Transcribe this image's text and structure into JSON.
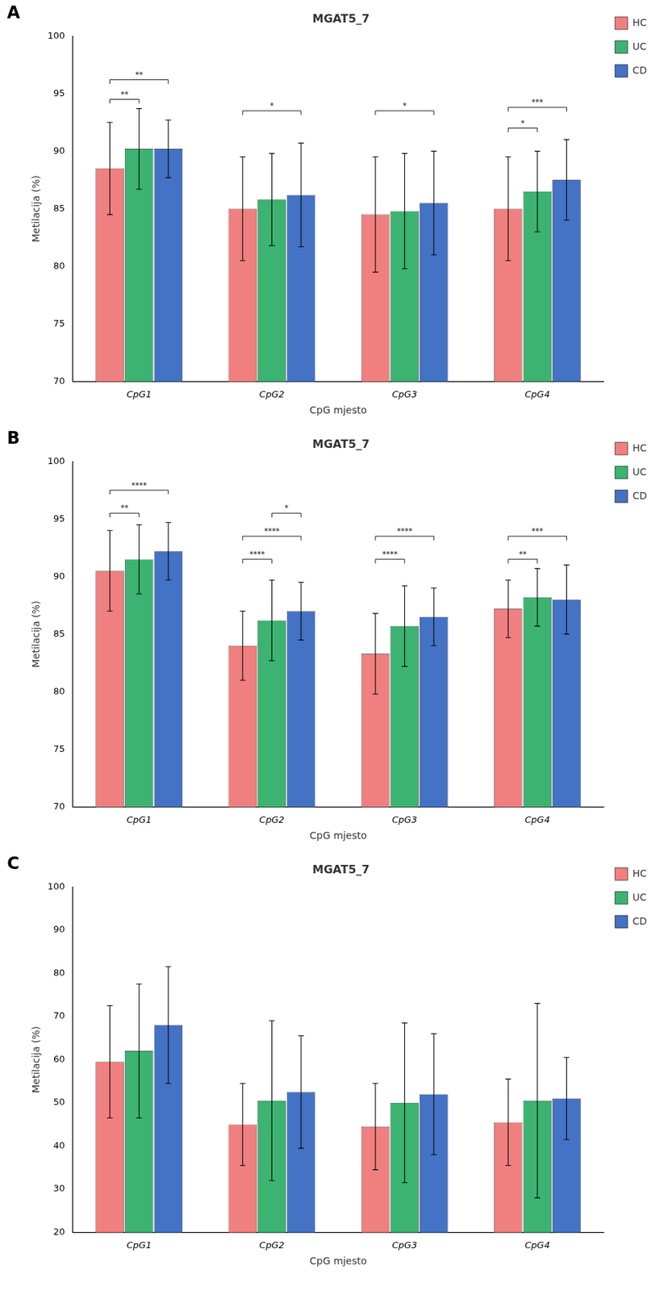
{
  "chart_data": [
    {
      "type": "bar",
      "panel_label": "A",
      "title": "MGAT5_7",
      "xlabel": "CpG mjesto",
      "ylabel": "Metilacija (%)",
      "categories": [
        "CpG1",
        "CpG2",
        "CpG3",
        "CpG4"
      ],
      "series": [
        {
          "name": "HC",
          "color": "#F08080",
          "values": [
            88.5,
            85.0,
            84.5,
            85.0
          ],
          "errors": [
            4.0,
            4.5,
            5.0,
            4.5
          ]
        },
        {
          "name": "UC",
          "color": "#3CB371",
          "values": [
            90.2,
            85.8,
            84.8,
            86.5
          ],
          "errors": [
            3.5,
            4.0,
            5.0,
            3.5
          ]
        },
        {
          "name": "CD",
          "color": "#4472C4",
          "values": [
            90.2,
            86.2,
            85.5,
            87.5
          ],
          "errors": [
            2.5,
            4.5,
            4.5,
            3.5
          ]
        }
      ],
      "ylim": [
        70,
        100
      ],
      "yticks": [
        70,
        75,
        80,
        85,
        90,
        95,
        100
      ],
      "grid": false,
      "legend": "right",
      "annotations": [
        {
          "category": "CpG1",
          "from": "HC",
          "to": "UC",
          "label": "**",
          "y": 94.5
        },
        {
          "category": "CpG1",
          "from": "HC",
          "to": "CD",
          "label": "**",
          "y": 96.2
        },
        {
          "category": "CpG2",
          "from": "HC",
          "to": "CD",
          "label": "*",
          "y": 93.5
        },
        {
          "category": "CpG3",
          "from": "HC",
          "to": "CD",
          "label": "*",
          "y": 93.5
        },
        {
          "category": "CpG4",
          "from": "HC",
          "to": "UC",
          "label": "*",
          "y": 92.0
        },
        {
          "category": "CpG4",
          "from": "HC",
          "to": "CD",
          "label": "***",
          "y": 93.8
        }
      ]
    },
    {
      "type": "bar",
      "panel_label": "B",
      "title": "MGAT5_7",
      "xlabel": "CpG mjesto",
      "ylabel": "Metilacija (%)",
      "categories": [
        "CpG1",
        "CpG2",
        "CpG3",
        "CpG4"
      ],
      "series": [
        {
          "name": "HC",
          "color": "#F08080",
          "values": [
            90.5,
            84.0,
            83.3,
            87.2
          ],
          "errors": [
            3.5,
            3.0,
            3.5,
            2.5
          ]
        },
        {
          "name": "UC",
          "color": "#3CB371",
          "values": [
            91.5,
            86.2,
            85.7,
            88.2
          ],
          "errors": [
            3.0,
            3.5,
            3.5,
            2.5
          ]
        },
        {
          "name": "CD",
          "color": "#4472C4",
          "values": [
            92.2,
            87.0,
            86.5,
            88.0
          ],
          "errors": [
            2.5,
            2.5,
            2.5,
            3.0
          ]
        }
      ],
      "ylim": [
        70,
        100
      ],
      "yticks": [
        70,
        75,
        80,
        85,
        90,
        95,
        100
      ],
      "grid": false,
      "legend": "right",
      "annotations": [
        {
          "category": "CpG1",
          "from": "HC",
          "to": "UC",
          "label": "**",
          "y": 95.5
        },
        {
          "category": "CpG1",
          "from": "HC",
          "to": "CD",
          "label": "****",
          "y": 97.5
        },
        {
          "category": "CpG2",
          "from": "HC",
          "to": "UC",
          "label": "****",
          "y": 91.5
        },
        {
          "category": "CpG2",
          "from": "HC",
          "to": "CD",
          "label": "****",
          "y": 93.5
        },
        {
          "category": "CpG2",
          "from": "UC",
          "to": "CD",
          "label": "*",
          "y": 95.5
        },
        {
          "category": "CpG3",
          "from": "HC",
          "to": "UC",
          "label": "****",
          "y": 91.5
        },
        {
          "category": "CpG3",
          "from": "HC",
          "to": "CD",
          "label": "****",
          "y": 93.5
        },
        {
          "category": "CpG4",
          "from": "HC",
          "to": "UC",
          "label": "**",
          "y": 91.5
        },
        {
          "category": "CpG4",
          "from": "HC",
          "to": "CD",
          "label": "***",
          "y": 93.5
        }
      ]
    },
    {
      "type": "bar",
      "panel_label": "C",
      "title": "MGAT5_7",
      "xlabel": "CpG mjesto",
      "ylabel": "Metilacija (%)",
      "categories": [
        "CpG1",
        "CpG2",
        "CpG3",
        "CpG4"
      ],
      "series": [
        {
          "name": "HC",
          "color": "#F08080",
          "values": [
            59.5,
            45.0,
            44.5,
            45.5
          ],
          "errors": [
            13.0,
            9.5,
            10.0,
            10.0
          ]
        },
        {
          "name": "UC",
          "color": "#3CB371",
          "values": [
            62.0,
            50.5,
            50.0,
            50.5
          ],
          "errors": [
            15.5,
            18.5,
            18.5,
            22.5
          ]
        },
        {
          "name": "CD",
          "color": "#4472C4",
          "values": [
            68.0,
            52.5,
            52.0,
            51.0
          ],
          "errors": [
            13.5,
            13.0,
            14.0,
            9.5
          ]
        }
      ],
      "ylim": [
        20,
        100
      ],
      "yticks": [
        20,
        30,
        40,
        50,
        60,
        70,
        80,
        90,
        100
      ],
      "grid": false,
      "legend": "right",
      "annotations": []
    }
  ]
}
